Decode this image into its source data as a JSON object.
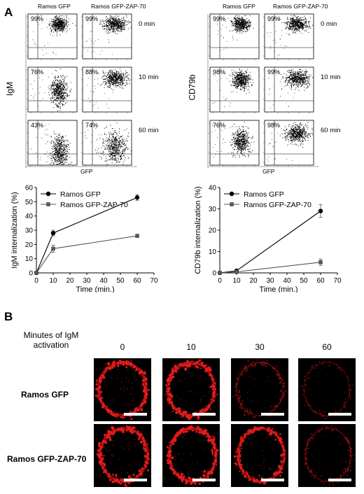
{
  "panel_a": {
    "label": "A",
    "col_labels": [
      "Ramos GFP",
      "Ramos GFP-ZAP-70"
    ],
    "times": [
      "0 min",
      "10 min",
      "60 min"
    ],
    "flow_igm": {
      "ylabel": "IgM",
      "xlabel": "GFP",
      "pct": [
        [
          "99%",
          "99%"
        ],
        [
          "76%",
          "88%"
        ],
        [
          "43%",
          "74%"
        ]
      ]
    },
    "flow_cd79b": {
      "ylabel": "CD79b",
      "xlabel": "GFP",
      "pct": [
        [
          "99%",
          "99%"
        ],
        [
          "98%",
          "99%"
        ],
        [
          "76%",
          "98%"
        ]
      ]
    }
  },
  "chart_data": [
    {
      "type": "line",
      "xlabel": "Time (min.)",
      "ylabel": "IgM internalization (%)",
      "xlim": [
        0,
        70
      ],
      "ylim": [
        0,
        60
      ],
      "xticks": [
        0,
        10,
        20,
        30,
        40,
        50,
        60,
        70
      ],
      "yticks": [
        0,
        10,
        20,
        30,
        40,
        50,
        60
      ],
      "x": [
        0,
        10,
        60
      ],
      "legend_position": "top-left",
      "series": [
        {
          "name": "Ramos GFP",
          "values": [
            0,
            28,
            53
          ],
          "err": [
            0,
            2,
            2
          ],
          "color": "#000000",
          "marker": "circle"
        },
        {
          "name": "Ramos GFP-ZAP-70",
          "values": [
            0,
            17,
            26
          ],
          "err": [
            0,
            2.5,
            0.5
          ],
          "color": "#555555",
          "marker": "square"
        }
      ]
    },
    {
      "type": "line",
      "xlabel": "Time (min.)",
      "ylabel": "CD79b internalization (%)",
      "xlim": [
        0,
        70
      ],
      "ylim": [
        0,
        40
      ],
      "xticks": [
        0,
        10,
        20,
        30,
        40,
        50,
        60,
        70
      ],
      "yticks": [
        0,
        10,
        20,
        30,
        40
      ],
      "x": [
        0,
        10,
        60
      ],
      "legend_position": "top-left",
      "series": [
        {
          "name": "Ramos GFP",
          "values": [
            0,
            1,
            29
          ],
          "err": [
            0,
            0.5,
            3
          ],
          "color": "#000000",
          "marker": "circle"
        },
        {
          "name": "Ramos GFP-ZAP-70",
          "values": [
            0,
            0.5,
            5
          ],
          "err": [
            0,
            0.5,
            1.5
          ],
          "color": "#555555",
          "marker": "square"
        }
      ]
    }
  ],
  "panel_b": {
    "label": "B",
    "header_line1": "Minutes of IgM",
    "header_line2": "activation",
    "times": [
      "0",
      "10",
      "30",
      "60"
    ],
    "rows": [
      "Ramos GFP",
      "Ramos GFP-ZAP-70"
    ],
    "intensity": [
      [
        1.0,
        1.0,
        0.35,
        0.2
      ],
      [
        1.0,
        1.0,
        0.95,
        0.3
      ]
    ]
  }
}
